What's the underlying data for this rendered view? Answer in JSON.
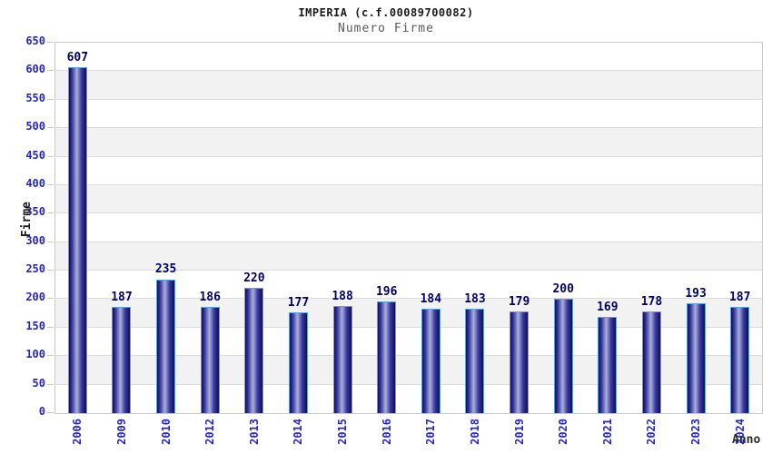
{
  "header": {
    "title": "IMPERIA (c.f.00089700082)",
    "subtitle": "Numero Firme"
  },
  "chart_data": {
    "type": "bar",
    "title": "IMPERIA (c.f.00089700082)",
    "subtitle": "Numero Firme",
    "xlabel": "Anno",
    "ylabel": "Firme",
    "categories": [
      "2006",
      "2009",
      "2010",
      "2012",
      "2013",
      "2014",
      "2015",
      "2016",
      "2017",
      "2018",
      "2019",
      "2020",
      "2021",
      "2022",
      "2023",
      "2024"
    ],
    "values": [
      607,
      187,
      235,
      186,
      220,
      177,
      188,
      196,
      184,
      183,
      179,
      200,
      169,
      178,
      193,
      187
    ],
    "ylim": [
      0,
      650
    ],
    "ystep": 50,
    "grid": "horizontal",
    "legend": "none",
    "value_labels": "above-bars",
    "colors": {
      "tick_label": "#2424cc",
      "value_label": "#000066",
      "bar_border": "#5ea0dc",
      "bar_dark": "#0e0e5a",
      "bar_mid": "#3a3a9e",
      "bar_light": "#aab0dd",
      "band_gray": "#f2f2f2",
      "band_white": "#ffffff",
      "gridline": "#dcdcdc"
    }
  }
}
